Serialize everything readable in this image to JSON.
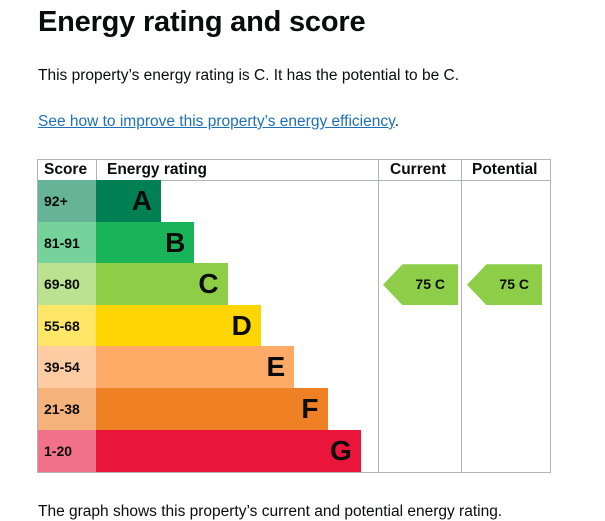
{
  "page": {
    "title": "Energy rating and score",
    "summary": "This property’s energy rating is C. It has the potential to be C.",
    "improve_link_text": "See how to improve this property’s energy efficiency",
    "improve_link_suffix": ".",
    "footnote": "The graph shows this property’s current and potential energy rating."
  },
  "chart": {
    "headers": {
      "score": "Score",
      "energy_rating": "Energy rating",
      "current": "Current",
      "potential": "Potential"
    },
    "bands": [
      {
        "score": "92+",
        "letter": "A",
        "bar_color": "#008054",
        "score_color": "#66b398"
      },
      {
        "score": "81-91",
        "letter": "B",
        "bar_color": "#19b459",
        "score_color": "#75d29b"
      },
      {
        "score": "69-80",
        "letter": "C",
        "bar_color": "#8dce46",
        "score_color": "#bbe290"
      },
      {
        "score": "55-68",
        "letter": "D",
        "bar_color": "#ffd500",
        "score_color": "#ffe666"
      },
      {
        "score": "39-54",
        "letter": "E",
        "bar_color": "#fcaa65",
        "score_color": "#fdcca3"
      },
      {
        "score": "21-38",
        "letter": "F",
        "bar_color": "#ef8023",
        "score_color": "#f5b37b"
      },
      {
        "score": "1-20",
        "letter": "G",
        "bar_color": "#e9153b",
        "score_color": "#f27389"
      }
    ],
    "current": {
      "label": "75 C",
      "band": "C",
      "score": 75,
      "color": "#8ecd48"
    },
    "potential": {
      "label": "75 C",
      "band": "C",
      "score": 75,
      "color": "#8ecd48"
    }
  }
}
